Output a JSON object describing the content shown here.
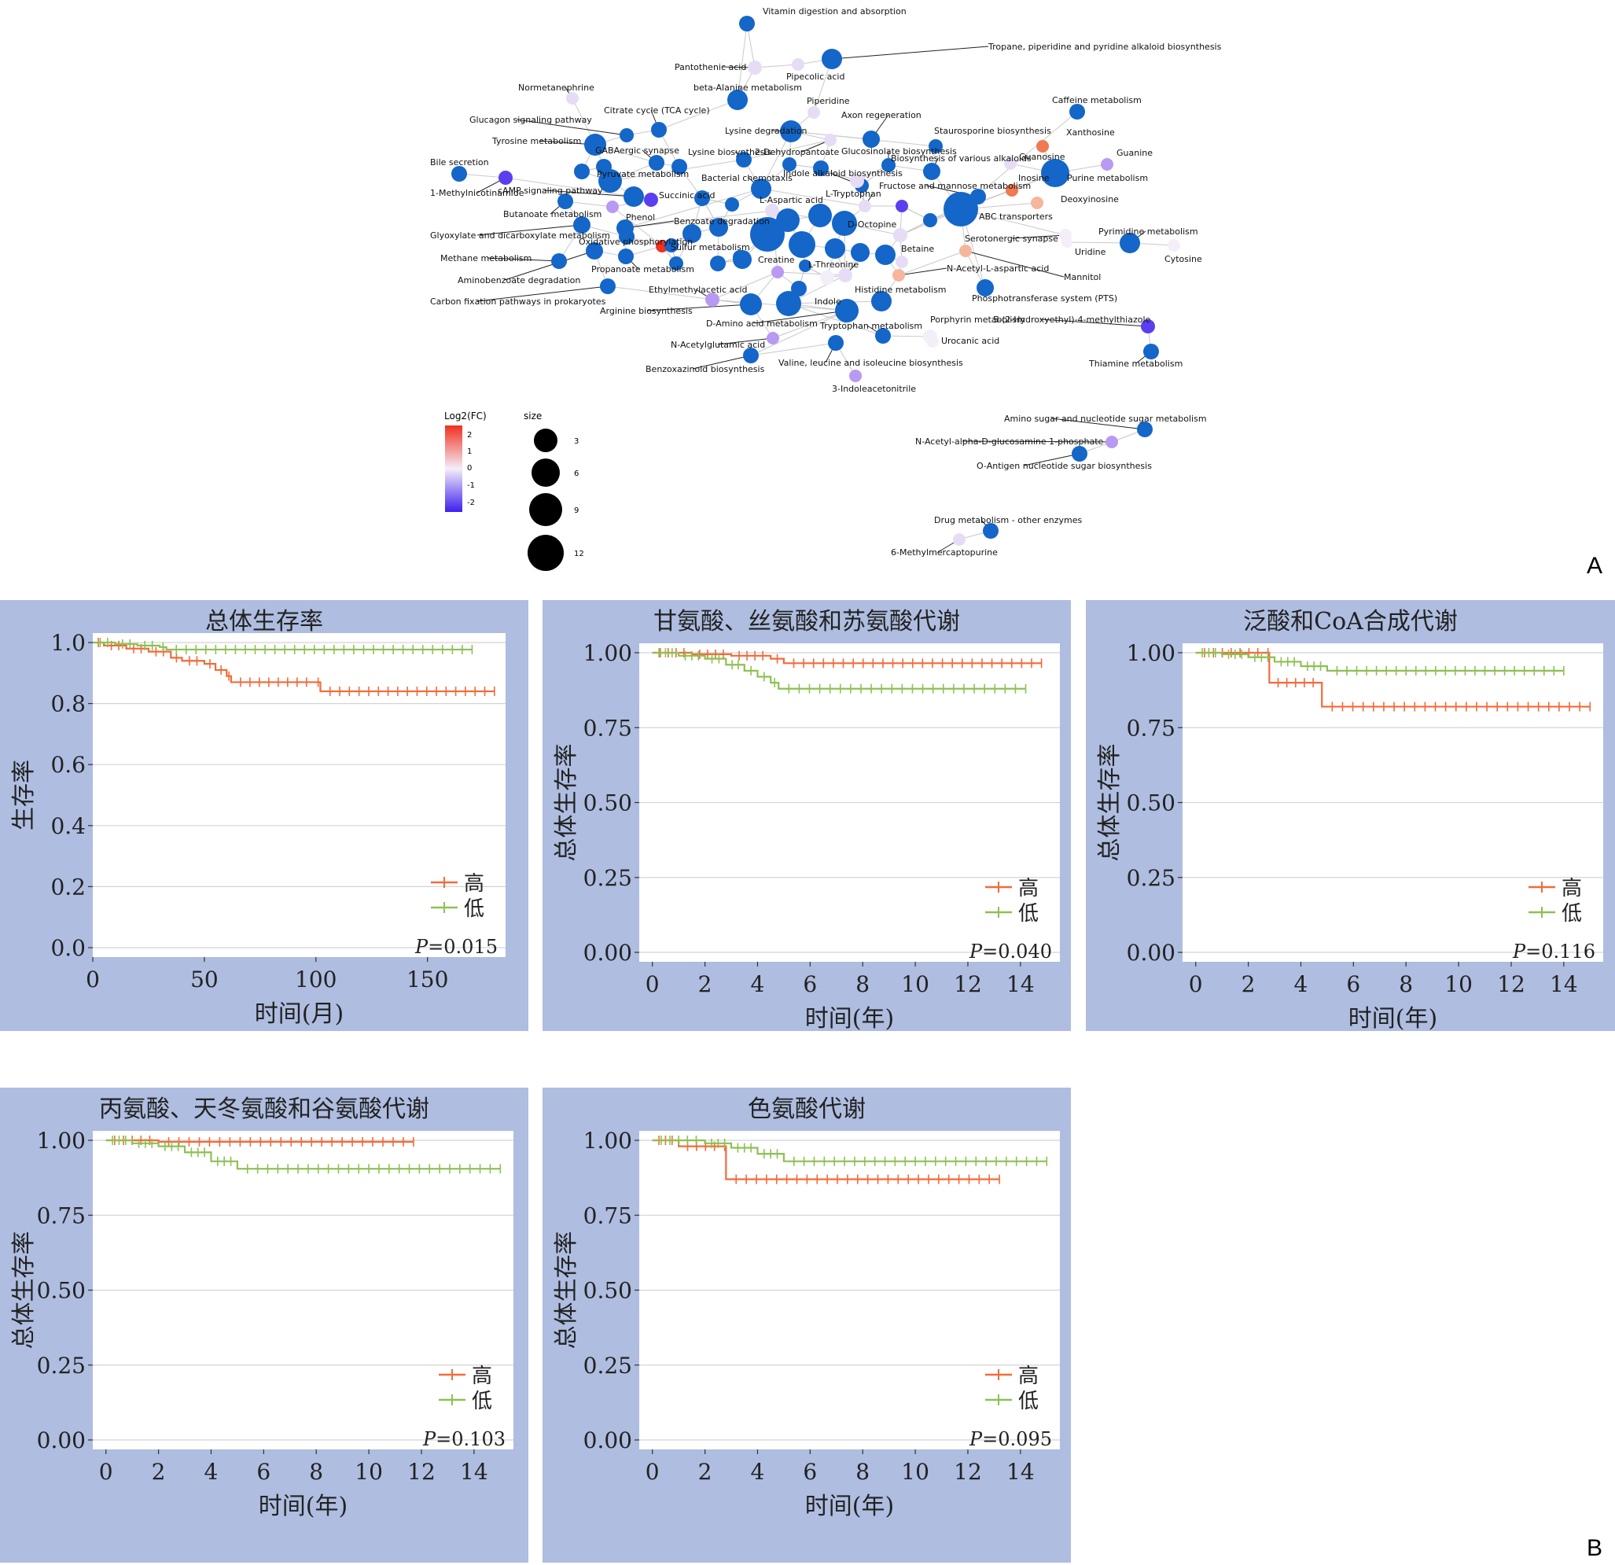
{
  "panel_labels": {
    "a": "A",
    "b": "B"
  },
  "network": {
    "legend_color_title": "Log2(FC)",
    "legend_color_ticks": [
      "2",
      "1",
      "0",
      "-1",
      "-2"
    ],
    "legend_size_title": "size",
    "legend_size_ticks": [
      "3",
      "6",
      "9",
      "12"
    ],
    "colors": {
      "low": "#3d1ef0",
      "mid": "#f4eef8",
      "high": "#f03020",
      "pathway": "#1466c8",
      "edge": "#c9c9c9"
    },
    "labels": [
      "Vitamin digestion and absorption",
      "Tropane, piperidine and pyridine alkaloid biosynthesis",
      "Pantothenic acid",
      "Pipecolic acid",
      "Normetanephrine",
      "beta-Alanine metabolism",
      "Piperidine",
      "Citrate cycle (TCA cycle)",
      "Axon regeneration",
      "Caffeine metabolism",
      "Glucagon signaling pathway",
      "Lysine degradation",
      "Staurosporine biosynthesis",
      "Xanthosine",
      "Tyrosine metabolism",
      "GABAergic synapse",
      "Lysine biosynthesis",
      "2-Dehydropantoate",
      "Glucosinolate biosynthesis",
      "Guanosine",
      "Guanine",
      "Biosynthesis of various alkaloids",
      "Bile secretion",
      "Pyruvate metabolism",
      "Bacterial chemotaxis",
      "Indole alkaloid biosynthesis",
      "Inosine",
      "Purine metabolism",
      "1-Methylnicotinamide",
      "cAMP signaling pathway",
      "Succinic acid",
      "L-Aspartic acid",
      "L-Tryptophan",
      "Fructose and mannose metabolism",
      "Deoxyinosine",
      "Butanoate metabolism",
      "Phenol",
      "Benzoate degradation",
      "D-Octopine",
      "ABC transporters",
      "Glyoxylate and dicarboxylate metabolism",
      "Oxidative phosphorylation",
      "Serotonergic synapse",
      "Pyrimidine metabolism",
      "Sulfur metabolism",
      "Betaine",
      "Uridine",
      "Cytosine",
      "Methane metabolism",
      "Creatine",
      "L-Threonine",
      "N-Acetyl-L-aspartic acid",
      "Propanoate metabolism",
      "Mannitol",
      "Aminobenzoate degradation",
      "Histidine metabolism",
      "Ethylmethylacetic acid",
      "Phosphotransferase system (PTS)",
      "Carbon fixation pathways in prokaryotes",
      "Indole",
      "Arginine biosynthesis",
      "D-Amino acid metabolism",
      "Tryptophan metabolism",
      "Porphyrin metabolism",
      "5-(2-Hydroxyethyl)-4-methylthiazole",
      "N-Acetylglutamic acid",
      "Urocanic acid",
      "Benzoxazinoid biosynthesis",
      "Valine, leucine and isoleucine biosynthesis",
      "Thiamine metabolism",
      "3-Indoleacetonitrile",
      "Amino sugar and nucleotide sugar metabolism",
      "N-Acetyl-alpha-D-glucosamine 1-phosphate",
      "O-Antigen nucleotide sugar biosynthesis",
      "Drug metabolism - other enzymes",
      "6-Methylmercaptopurine"
    ]
  },
  "km_common": {
    "legend_high": "高",
    "legend_low": "低",
    "p_prefix": "P",
    "colors": {
      "high": "#f26b3a",
      "low": "#8dc153",
      "panel_bg": "#aebde0",
      "grid": "#d4d4d4"
    }
  },
  "chart_data": [
    {
      "type": "line",
      "title": "总体生存率",
      "xlabel": "时间(月)",
      "ylabel": "生存率",
      "xlim": [
        0,
        185
      ],
      "ylim": [
        0,
        1.0
      ],
      "xticks": [
        "0",
        "50",
        "100",
        "150"
      ],
      "xtick_values": [
        0,
        50,
        100,
        150
      ],
      "yticks": [
        "0.0",
        "0.2",
        "0.4",
        "0.6",
        "0.8",
        "1.0"
      ],
      "ytick_values": [
        0,
        0.2,
        0.4,
        0.6,
        0.8,
        1.0
      ],
      "p_value": "=0.015",
      "series": [
        {
          "name": "高",
          "x": [
            0,
            5,
            15,
            25,
            35,
            40,
            50,
            55,
            60,
            62,
            100,
            102,
            180
          ],
          "y": [
            1.0,
            0.99,
            0.98,
            0.97,
            0.95,
            0.94,
            0.93,
            0.91,
            0.89,
            0.87,
            0.87,
            0.84,
            0.84
          ]
        },
        {
          "name": "低",
          "x": [
            0,
            10,
            20,
            30,
            33,
            170
          ],
          "y": [
            1.0,
            0.995,
            0.99,
            0.985,
            0.977,
            0.977
          ]
        }
      ]
    },
    {
      "type": "line",
      "title": "甘氨酸、丝氨酸和苏氨酸代谢",
      "xlabel": "时间(年)",
      "ylabel": "总体生存率",
      "xlim": [
        -0.5,
        15.5
      ],
      "ylim": [
        0,
        1.0
      ],
      "xticks": [
        "0",
        "2",
        "4",
        "6",
        "8",
        "10",
        "12",
        "14"
      ],
      "xtick_values": [
        0,
        2,
        4,
        6,
        8,
        10,
        12,
        14
      ],
      "yticks": [
        "0.00",
        "0.25",
        "0.50",
        "0.75",
        "1.00"
      ],
      "ytick_values": [
        0,
        0.25,
        0.5,
        0.75,
        1.0
      ],
      "p_value": "=0.040",
      "series": [
        {
          "name": "高",
          "x": [
            0,
            1.5,
            3,
            4.5,
            5,
            14.8
          ],
          "y": [
            1.0,
            0.995,
            0.99,
            0.98,
            0.965,
            0.965
          ]
        },
        {
          "name": "低",
          "x": [
            0,
            1,
            2,
            2.8,
            3.5,
            4,
            4.5,
            4.8,
            14.2
          ],
          "y": [
            1.0,
            0.99,
            0.98,
            0.96,
            0.94,
            0.92,
            0.9,
            0.88,
            0.88
          ]
        }
      ]
    },
    {
      "type": "line",
      "title": "泛酸和CoA合成代谢",
      "xlabel": "时间(年)",
      "ylabel": "总体生存率",
      "xlim": [
        -0.5,
        15.5
      ],
      "ylim": [
        0,
        1.0
      ],
      "xticks": [
        "0",
        "2",
        "4",
        "6",
        "8",
        "10",
        "12",
        "14"
      ],
      "xtick_values": [
        0,
        2,
        4,
        6,
        8,
        10,
        12,
        14
      ],
      "yticks": [
        "0.00",
        "0.25",
        "0.50",
        "0.75",
        "1.00"
      ],
      "ytick_values": [
        0,
        0.25,
        0.5,
        0.75,
        1.0
      ],
      "p_value": "=0.116",
      "series": [
        {
          "name": "高",
          "x": [
            0,
            2.7,
            2.8,
            4.8,
            15
          ],
          "y": [
            1.0,
            1.0,
            0.9,
            0.82,
            0.82
          ]
        },
        {
          "name": "低",
          "x": [
            0,
            1,
            2,
            3,
            4,
            5,
            14
          ],
          "y": [
            1.0,
            0.995,
            0.985,
            0.97,
            0.955,
            0.94,
            0.94
          ]
        }
      ]
    },
    {
      "type": "line",
      "title": "丙氨酸、天冬氨酸和谷氨酸代谢",
      "xlabel": "时间(年)",
      "ylabel": "总体生存率",
      "xlim": [
        -0.5,
        15.5
      ],
      "ylim": [
        0,
        1.0
      ],
      "xticks": [
        "0",
        "2",
        "4",
        "6",
        "8",
        "10",
        "12",
        "14"
      ],
      "xtick_values": [
        0,
        2,
        4,
        6,
        8,
        10,
        12,
        14
      ],
      "yticks": [
        "0.00",
        "0.25",
        "0.50",
        "0.75",
        "1.00"
      ],
      "ytick_values": [
        0,
        0.25,
        0.5,
        0.75,
        1.0
      ],
      "p_value": "=0.103",
      "series": [
        {
          "name": "高",
          "x": [
            0,
            2,
            11.7
          ],
          "y": [
            1.0,
            0.995,
            0.995
          ]
        },
        {
          "name": "低",
          "x": [
            0,
            1,
            2,
            3,
            4,
            5,
            15
          ],
          "y": [
            1.0,
            0.99,
            0.98,
            0.96,
            0.93,
            0.905,
            0.905
          ]
        }
      ]
    },
    {
      "type": "line",
      "title": "色氨酸代谢",
      "xlabel": "时间(年)",
      "ylabel": "总体生存率",
      "xlim": [
        -0.5,
        15.5
      ],
      "ylim": [
        0,
        1.0
      ],
      "xticks": [
        "0",
        "2",
        "4",
        "6",
        "8",
        "10",
        "12",
        "14"
      ],
      "xtick_values": [
        0,
        2,
        4,
        6,
        8,
        10,
        12,
        14
      ],
      "yticks": [
        "0.00",
        "0.25",
        "0.50",
        "0.75",
        "1.00"
      ],
      "ytick_values": [
        0,
        0.25,
        0.5,
        0.75,
        1.0
      ],
      "p_value": "=0.095",
      "series": [
        {
          "name": "高",
          "x": [
            0,
            1,
            2.7,
            2.8,
            13.2
          ],
          "y": [
            1.0,
            0.98,
            0.98,
            0.87,
            0.87
          ]
        },
        {
          "name": "低",
          "x": [
            0,
            2,
            3,
            4,
            5,
            15
          ],
          "y": [
            1.0,
            0.99,
            0.975,
            0.955,
            0.93,
            0.93
          ]
        }
      ]
    }
  ]
}
